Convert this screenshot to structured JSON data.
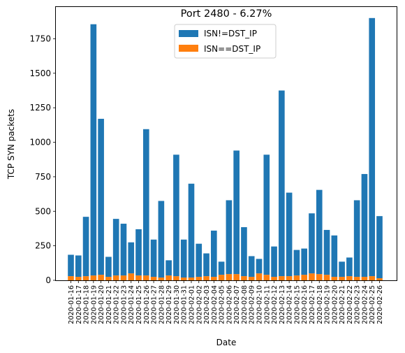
{
  "chart_data": {
    "type": "bar",
    "stacked": true,
    "title": "Port 2480 - 6.27%",
    "xlabel": "Date",
    "ylabel": "TCP SYN packets",
    "ylim": [
      0,
      1980
    ],
    "yticks": [
      0,
      250,
      500,
      750,
      1000,
      1250,
      1500,
      1750
    ],
    "legend_position": "top-center",
    "grid": false,
    "categories": [
      "2020-01-16",
      "2020-01-17",
      "2020-01-18",
      "2020-01-19",
      "2020-01-20",
      "2020-01-21",
      "2020-01-22",
      "2020-01-23",
      "2020-01-24",
      "2020-01-25",
      "2020-01-26",
      "2020-01-27",
      "2020-01-28",
      "2020-01-29",
      "2020-01-30",
      "2020-01-31",
      "2020-02-01",
      "2020-02-02",
      "2020-02-03",
      "2020-02-04",
      "2020-02-05",
      "2020-02-06",
      "2020-02-07",
      "2020-02-08",
      "2020-02-09",
      "2020-02-10",
      "2020-02-11",
      "2020-02-12",
      "2020-02-13",
      "2020-02-14",
      "2020-02-15",
      "2020-02-16",
      "2020-02-17",
      "2020-02-18",
      "2020-02-19",
      "2020-02-20",
      "2020-02-21",
      "2020-02-22",
      "2020-02-23",
      "2020-02-24",
      "2020-02-25",
      "2020-02-26"
    ],
    "series": [
      {
        "name": "ISN==DST_IP",
        "color": "#ff7f0e",
        "values": [
          30,
          25,
          30,
          35,
          40,
          25,
          35,
          35,
          50,
          35,
          35,
          25,
          20,
          35,
          30,
          20,
          20,
          25,
          30,
          25,
          40,
          45,
          45,
          30,
          25,
          50,
          40,
          25,
          30,
          30,
          35,
          40,
          50,
          45,
          40,
          25,
          25,
          30,
          25,
          25,
          30,
          15
        ]
      },
      {
        "name": "ISN!=DST_IP",
        "color": "#1f77b4",
        "values": [
          155,
          155,
          430,
          1820,
          1130,
          145,
          410,
          375,
          225,
          335,
          1060,
          270,
          555,
          110,
          880,
          275,
          680,
          240,
          165,
          335,
          95,
          535,
          895,
          355,
          150,
          105,
          870,
          220,
          1345,
          605,
          185,
          190,
          435,
          610,
          325,
          300,
          110,
          135,
          555,
          745,
          1870,
          450
        ]
      }
    ]
  }
}
